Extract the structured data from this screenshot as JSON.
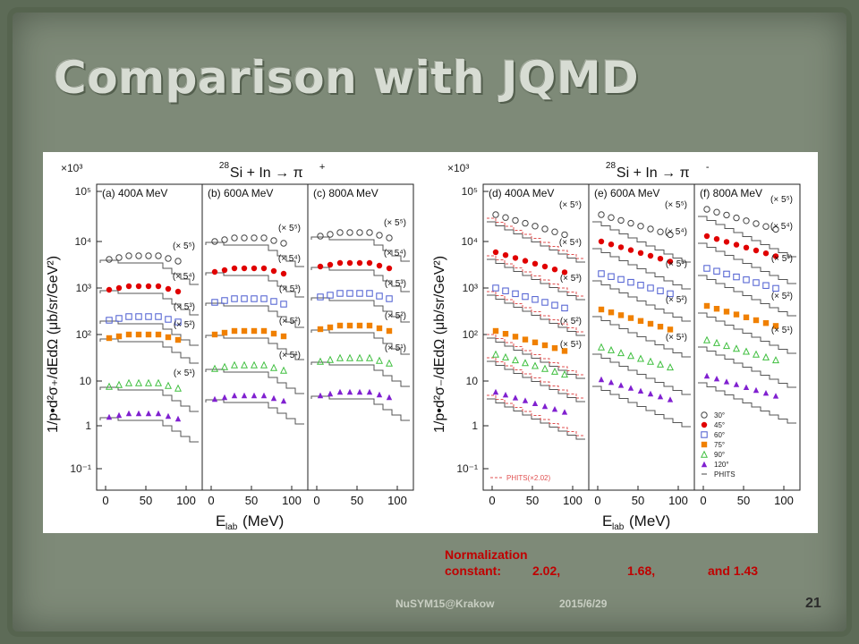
{
  "slide": {
    "title": "Comparison with JQMD",
    "footer_left": "NuSYM15@Krakow",
    "footer_date": "2015/6/29",
    "page_number": "21"
  },
  "note": {
    "line1": "Normalization",
    "line2_label": "constant:",
    "values": [
      "2.02,",
      "1.68,",
      "and 1.43"
    ]
  },
  "figure": {
    "panel_groups": [
      {
        "reaction_prefix": "28",
        "reaction_main": "Si + In → π",
        "reaction_sup": "+",
        "ylabel": "1/p•d²σ₊/dEdΩ (μb/sr/GeV²)",
        "multiplier": "×10³",
        "subpanels": [
          "(a) 400A MeV",
          "(b) 600A MeV",
          "(c) 800A MeV"
        ]
      },
      {
        "reaction_prefix": "28",
        "reaction_main": "Si + In → π",
        "reaction_sup": "-",
        "ylabel": "1/p•d²σ₋/dEdΩ (μb/sr/GeV²)",
        "multiplier": "×10³",
        "subpanels": [
          "(d) 400A MeV",
          "(e) 600A MeV",
          "(f) 800A MeV"
        ]
      }
    ],
    "yticks": [
      "10⁵",
      "10⁴",
      "10³",
      "10²",
      "10",
      "1",
      "10⁻¹"
    ],
    "xticks": [
      "0",
      "50",
      "100"
    ],
    "xlabel": "E",
    "xlabel_sub": "lab",
    "xlabel_unit": " (MeV)",
    "scale_labels": [
      "(× 5⁵)",
      "(× 5⁴)",
      "(× 5³)",
      "(× 5²)",
      "(× 5¹)"
    ],
    "phits_label": "PHITS(×2.02)",
    "legend": [
      {
        "label": "30°",
        "marker": "open-circle",
        "color": "#444444"
      },
      {
        "label": "45°",
        "marker": "filled-circle",
        "color": "#e00000"
      },
      {
        "label": "60°",
        "marker": "open-square",
        "color": "#4a5ad0"
      },
      {
        "label": "75°",
        "marker": "filled-square",
        "color": "#f08000"
      },
      {
        "label": "90°",
        "marker": "open-triangle",
        "color": "#3fbf3f"
      },
      {
        "label": "120°",
        "marker": "filled-triangle",
        "color": "#8020d0"
      },
      {
        "label": "PHITS",
        "marker": "line",
        "color": "#444444"
      }
    ]
  }
}
